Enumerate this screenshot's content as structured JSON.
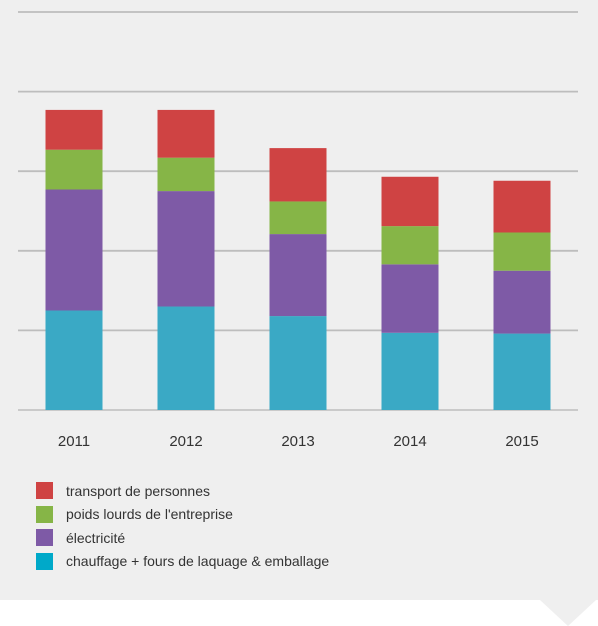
{
  "chart_data": {
    "type": "bar",
    "stacked": true,
    "categories": [
      "2011",
      "2012",
      "2013",
      "2014",
      "2015"
    ],
    "ylim": [
      0,
      5
    ],
    "grid": true,
    "legend_position": "bottom",
    "series": [
      {
        "name": "chauffage + fours de laquage & emballage",
        "color": "#3aa9c5",
        "values": [
          1.25,
          1.3,
          1.18,
          0.97,
          0.96
        ]
      },
      {
        "name": "électricité",
        "color": "#7e5aa6",
        "values": [
          1.52,
          1.45,
          1.03,
          0.86,
          0.79
        ]
      },
      {
        "name": "poids lourds de l'entreprise",
        "color": "#86b547",
        "values": [
          0.5,
          0.42,
          0.41,
          0.48,
          0.48
        ]
      },
      {
        "name": "transport de personnes",
        "color": "#cf4343",
        "values": [
          0.5,
          0.6,
          0.67,
          0.62,
          0.65
        ]
      }
    ]
  },
  "legend": {
    "items": [
      {
        "label": "transport de personnes",
        "color": "#cf4343"
      },
      {
        "label": "poids lourds de l'entreprise",
        "color": "#86b547"
      },
      {
        "label": "électricité",
        "color": "#7e5aa6"
      },
      {
        "label": "chauffage + fours de laquage & emballage",
        "color": "#00a9c9"
      }
    ]
  }
}
